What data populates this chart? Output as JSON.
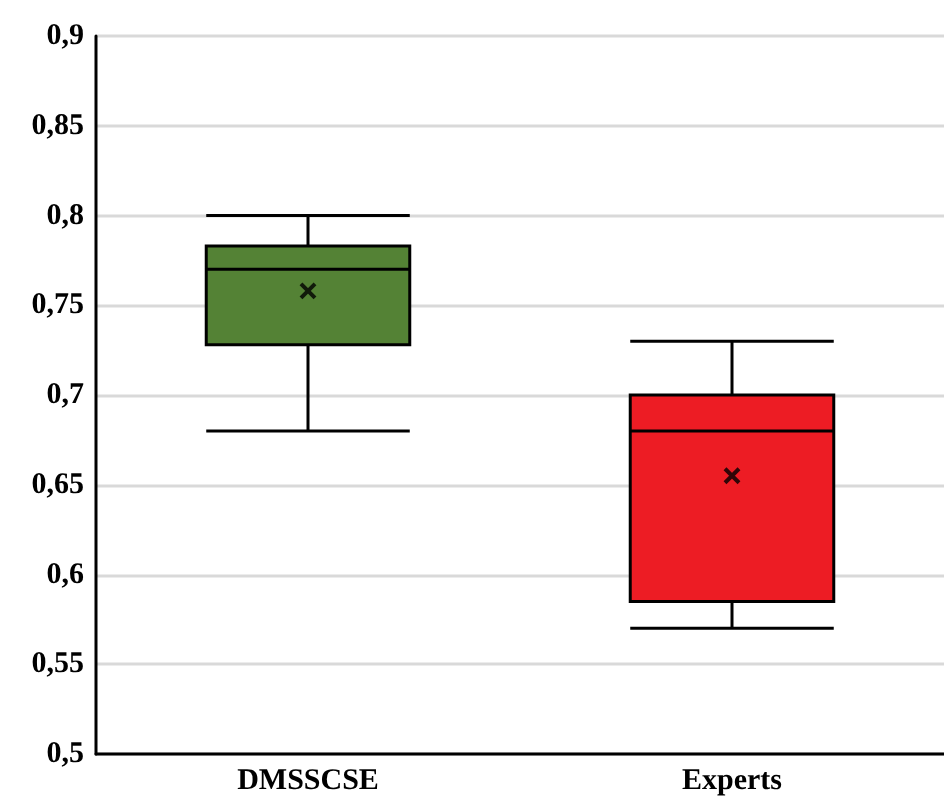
{
  "chart_data": {
    "type": "box",
    "categories": [
      "DMSSCSE",
      "Experts"
    ],
    "boxes": [
      {
        "low": 0.68,
        "q1": 0.728,
        "median": 0.77,
        "q3": 0.783,
        "high": 0.8,
        "mean": 0.758
      },
      {
        "low": 0.57,
        "q1": 0.585,
        "median": 0.68,
        "q3": 0.7,
        "high": 0.73,
        "mean": 0.655
      }
    ],
    "colors": [
      "#548235",
      "#ed1c24"
    ],
    "ylim": [
      0.5,
      0.9
    ],
    "yticks": [
      {
        "value": 0.5,
        "label": "0,5"
      },
      {
        "value": 0.55,
        "label": "0,55"
      },
      {
        "value": 0.6,
        "label": "0,6"
      },
      {
        "value": 0.65,
        "label": "0,65"
      },
      {
        "value": 0.7,
        "label": "0,7"
      },
      {
        "value": 0.75,
        "label": "0,75"
      },
      {
        "value": 0.8,
        "label": "0,8"
      },
      {
        "value": 0.85,
        "label": "0,85"
      },
      {
        "value": 0.9,
        "label": "0,9"
      }
    ],
    "grid": "y",
    "marker": "cross"
  }
}
